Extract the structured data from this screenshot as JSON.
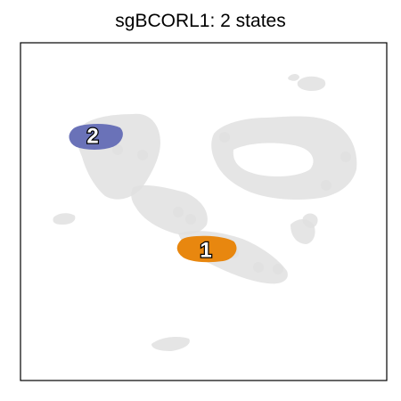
{
  "chart_data": {
    "type": "scatter",
    "title": "sgBCORL1: 2 states",
    "xlabel": "",
    "ylabel": "",
    "grid": false,
    "axes_ticks": false,
    "background_color": "#e0e0e0",
    "series": [
      {
        "name": "1",
        "color": "#e8870f",
        "label": "1"
      },
      {
        "name": "2",
        "color": "#6a72b8",
        "label": "2"
      }
    ]
  }
}
